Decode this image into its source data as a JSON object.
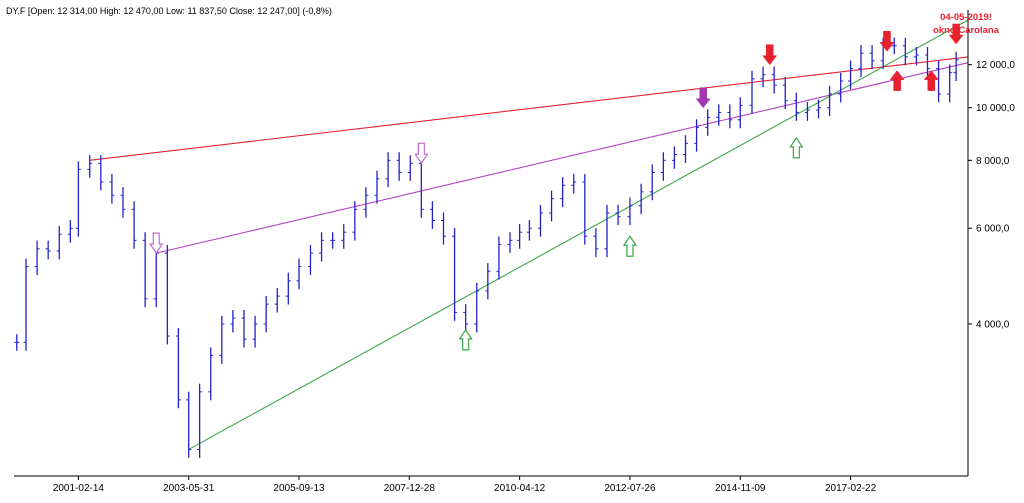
{
  "header": {
    "text": "DY.F [Open: 12 314,00  High: 12 470,00  Low: 11 837,50  Close: 12 247,00] (-0,8%)"
  },
  "chart_data": {
    "type": "ohlc",
    "series": [
      {
        "points": [
          [
            "1999-11-05",
            3700
          ],
          [
            "2000-01-14",
            5100
          ],
          [
            "2000-04-07",
            5500
          ],
          [
            "2000-06-30",
            5450
          ],
          [
            "2000-09-22",
            5850
          ],
          [
            "2000-12-15",
            6000
          ],
          [
            "2001-02-14",
            7700
          ],
          [
            "2001-05-11",
            7900
          ],
          [
            "2001-08-03",
            7300
          ],
          [
            "2001-10-26",
            6900
          ],
          [
            "2002-01-18",
            6500
          ],
          [
            "2002-04-12",
            5700
          ],
          [
            "2002-07-05",
            4450
          ],
          [
            "2002-09-27",
            5400
          ],
          [
            "2002-12-20",
            3800
          ],
          [
            "2003-03-14",
            2900
          ],
          [
            "2003-05-31",
            2350
          ],
          [
            "2003-08-22",
            3000
          ],
          [
            "2003-11-14",
            3500
          ],
          [
            "2004-02-06",
            4000
          ],
          [
            "2004-04-30",
            4100
          ],
          [
            "2004-07-23",
            3750
          ],
          [
            "2004-10-15",
            4000
          ],
          [
            "2005-01-07",
            4350
          ],
          [
            "2005-04-01",
            4500
          ],
          [
            "2005-06-24",
            4800
          ],
          [
            "2005-09-13",
            5100
          ],
          [
            "2005-12-09",
            5400
          ],
          [
            "2006-03-03",
            5700
          ],
          [
            "2006-05-26",
            5700
          ],
          [
            "2006-08-18",
            5900
          ],
          [
            "2006-11-10",
            6500
          ],
          [
            "2007-02-02",
            6900
          ],
          [
            "2007-04-27",
            7400
          ],
          [
            "2007-07-20",
            8000
          ],
          [
            "2007-10-12",
            7600
          ],
          [
            "2008-01-04",
            7900
          ],
          [
            "2008-03-28",
            6500
          ],
          [
            "2008-06-20",
            6200
          ],
          [
            "2008-09-12",
            5800
          ],
          [
            "2008-12-05",
            4200
          ],
          [
            "2009-02-27",
            4000
          ],
          [
            "2009-05-22",
            4600
          ],
          [
            "2009-08-14",
            5000
          ],
          [
            "2009-11-06",
            5600
          ],
          [
            "2010-01-29",
            5700
          ],
          [
            "2010-04-12",
            5900
          ],
          [
            "2010-06-25",
            6000
          ],
          [
            "2010-09-17",
            6400
          ],
          [
            "2010-12-10",
            6800
          ],
          [
            "2011-03-04",
            7200
          ],
          [
            "2011-05-27",
            7300
          ],
          [
            "2011-08-19",
            5800
          ],
          [
            "2011-11-11",
            5500
          ],
          [
            "2012-02-03",
            6400
          ],
          [
            "2012-04-27",
            6300
          ],
          [
            "2012-07-26",
            6600
          ],
          [
            "2012-10-19",
            7000
          ],
          [
            "2013-01-11",
            7600
          ],
          [
            "2013-04-05",
            8000
          ],
          [
            "2013-06-28",
            8200
          ],
          [
            "2013-09-20",
            8600
          ],
          [
            "2013-12-13",
            9200
          ],
          [
            "2014-03-07",
            9600
          ],
          [
            "2014-05-30",
            9800
          ],
          [
            "2014-08-22",
            9500
          ],
          [
            "2014-11-09",
            10100
          ],
          [
            "2015-02-06",
            11300
          ],
          [
            "2015-05-01",
            11500
          ],
          [
            "2015-07-24",
            11000
          ],
          [
            "2015-10-16",
            10300
          ],
          [
            "2016-01-08",
            9800
          ],
          [
            "2016-04-01",
            9900
          ],
          [
            "2016-06-24",
            10000
          ],
          [
            "2016-09-16",
            10600
          ],
          [
            "2016-12-09",
            11200
          ],
          [
            "2017-02-22",
            11800
          ],
          [
            "2017-05-12",
            12600
          ],
          [
            "2017-08-04",
            12200
          ],
          [
            "2017-10-27",
            13000
          ],
          [
            "2018-01-19",
            13000
          ],
          [
            "2018-04-13",
            12400
          ],
          [
            "2018-07-06",
            12500
          ],
          [
            "2018-09-28",
            11800
          ],
          [
            "2018-12-21",
            10600
          ],
          [
            "2019-03-15",
            11600
          ],
          [
            "2019-05-03",
            12247
          ]
        ]
      }
    ],
    "x_ticks": [
      "2001-02-14",
      "2003-05-31",
      "2005-09-13",
      "2007-12-28",
      "2010-04-12",
      "2012-07-26",
      "2014-11-09",
      "2017-02-22"
    ],
    "y_ticks": [
      4000,
      6000,
      8000,
      10000,
      12000
    ],
    "y_tick_labels": [
      "4 000,0",
      "6 000,0",
      "8 000,0",
      "10 000,0",
      "12 000,0"
    ],
    "y_scale": "log",
    "y_range": [
      2100,
      14500
    ],
    "x_range": [
      "1999-10-15",
      "2019-08-01"
    ],
    "lines": [
      {
        "color": "#e8212e",
        "from": [
          "2001-05-11",
          8000
        ],
        "to": [
          "2019-08-01",
          12400
        ]
      },
      {
        "color": "#b742c8",
        "from": [
          "2002-09-27",
          5400
        ],
        "to": [
          "2019-08-01",
          12100
        ]
      },
      {
        "color": "#3aa84a",
        "from": [
          "2003-05-31",
          2350
        ],
        "to": [
          "2019-08-01",
          14500
        ]
      }
    ],
    "arrows": [
      {
        "date": "2002-09-27",
        "value": 5400,
        "dir": "down",
        "style": "outline",
        "color": "#c06cc8"
      },
      {
        "date": "2008-03-28",
        "value": 7900,
        "dir": "down",
        "style": "outline",
        "color": "#c06cc8"
      },
      {
        "date": "2014-02-01",
        "value": 10000,
        "dir": "down",
        "style": "filled",
        "color": "#a335b0"
      },
      {
        "date": "2009-02-27",
        "value": 3900,
        "dir": "up",
        "style": "outline",
        "color": "#3aa84a"
      },
      {
        "date": "2012-07-26",
        "value": 5800,
        "dir": "up",
        "style": "outline",
        "color": "#3aa84a"
      },
      {
        "date": "2016-01-08",
        "value": 8800,
        "dir": "up",
        "style": "outline",
        "color": "#3aa84a"
      },
      {
        "date": "2015-06-20",
        "value": 12000,
        "dir": "down",
        "style": "filled",
        "color": "#e8212e"
      },
      {
        "date": "2017-11-25",
        "value": 12700,
        "dir": "down",
        "style": "filled",
        "color": "#e8212e"
      },
      {
        "date": "2018-02-10",
        "value": 11700,
        "dir": "up",
        "style": "filled",
        "color": "#e8212e"
      },
      {
        "date": "2018-10-27",
        "value": 11700,
        "dir": "up",
        "style": "filled",
        "color": "#e8212e"
      },
      {
        "date": "2019-05-03",
        "value": 13100,
        "dir": "down",
        "style": "filled",
        "color": "#e8212e"
      }
    ],
    "annotations": [
      {
        "text": "04-05-2019!",
        "color": "#e8212e"
      },
      {
        "text": "okno Carolana",
        "color": "#e8212e"
      }
    ],
    "colors": {
      "bars": "#2222cc",
      "axis": "#000000",
      "label": "#000000",
      "annotation": "#e8212e"
    }
  }
}
